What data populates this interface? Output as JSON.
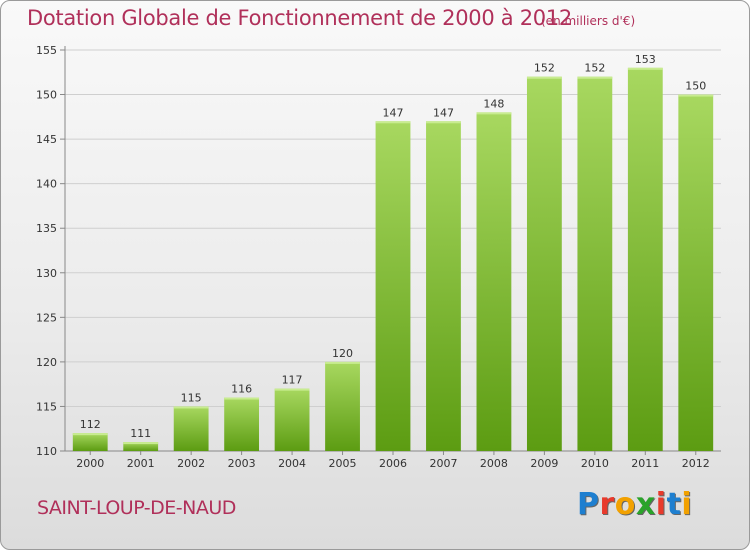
{
  "header": {
    "title": "Dotation Globale de Fonctionnement de 2000 à 2012",
    "unit": "(en milliers d'€)"
  },
  "footer": {
    "commune": "SAINT-LOUP-DE-NAUD",
    "logo_text": "Proxiti",
    "logo_colors": [
      "#1e7fd0",
      "#e83a2c",
      "#f2a100",
      "#2aa32a",
      "#e83a2c",
      "#1e7fd0",
      "#f2a100"
    ]
  },
  "colors": {
    "title": "#b0305a",
    "bar_light": "#a8d860",
    "bar_dark": "#5c9c12",
    "grid": "#cfcfcf"
  },
  "chart_data": {
    "type": "bar",
    "title": "Dotation Globale de Fonctionnement de 2000 à 2012",
    "xlabel": "",
    "ylabel": "",
    "categories": [
      "2000",
      "2001",
      "2002",
      "2003",
      "2004",
      "2005",
      "2006",
      "2007",
      "2008",
      "2009",
      "2010",
      "2011",
      "2012"
    ],
    "values": [
      112,
      111,
      115,
      116,
      117,
      120,
      147,
      147,
      148,
      152,
      152,
      153,
      150
    ],
    "ylim": [
      110,
      155
    ],
    "yticks": [
      110,
      115,
      120,
      125,
      130,
      135,
      140,
      145,
      150,
      155
    ],
    "grid": true,
    "data_labels": true
  }
}
